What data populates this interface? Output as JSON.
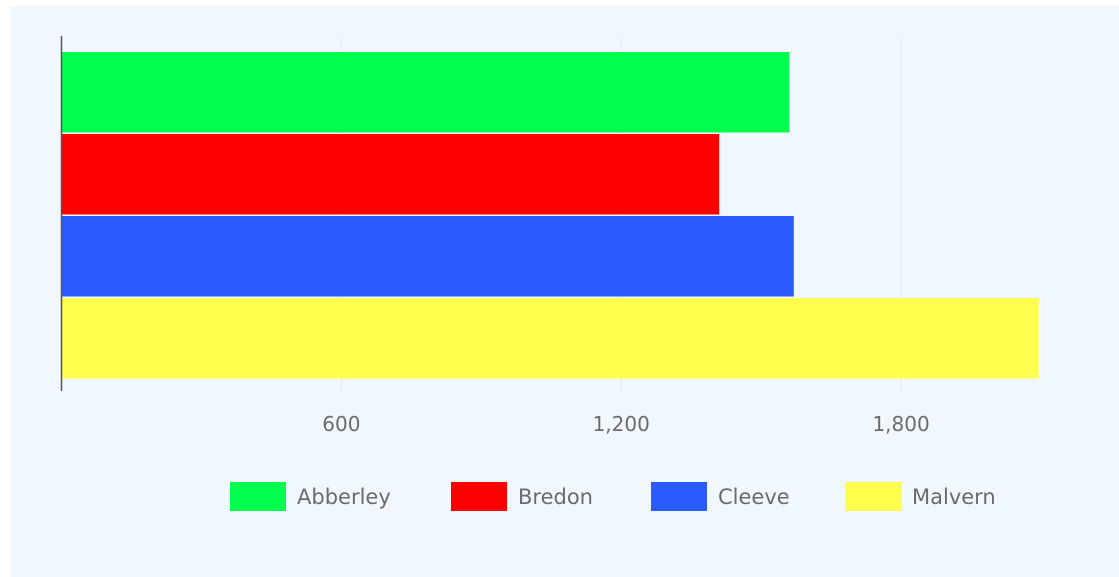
{
  "chart_data": {
    "type": "bar",
    "orientation": "horizontal",
    "title": "",
    "xlabel": "",
    "ylabel": "",
    "xlim": [
      0,
      2100
    ],
    "x_ticks": [
      600,
      1200,
      1800
    ],
    "x_tick_labels": [
      "600",
      "1,200",
      "1,800"
    ],
    "grid": true,
    "legend_position": "bottom",
    "series": [
      {
        "name": "Abberley",
        "color": "#00ff4c",
        "values": [
          1560
        ]
      },
      {
        "name": "Bredon",
        "color": "#ff0000",
        "values": [
          1410
        ]
      },
      {
        "name": "Cleeve",
        "color": "#2a5bff",
        "values": [
          1570
        ]
      },
      {
        "name": "Malvern",
        "color": "#ffff4d",
        "values": [
          2095
        ]
      }
    ]
  }
}
